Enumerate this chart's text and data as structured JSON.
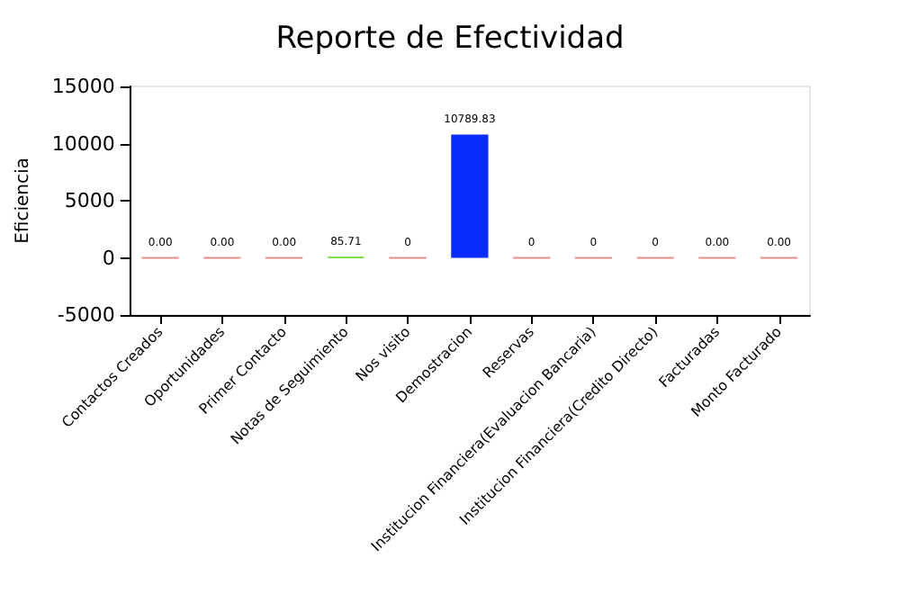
{
  "chart_data": {
    "type": "bar",
    "title": "Reporte de Efectividad",
    "ylabel": "Eficiencia",
    "categories": [
      "Contactos Creados",
      "Oportunidades",
      "Primer Contacto",
      "Notas de Seguimiento",
      "Nos visito",
      "Demostracion",
      "Reservas",
      "Institucion Financiera(Evaluacion Bancaria)",
      "Institucion Financiera(Credito Directo)",
      "Facturadas",
      "Monto Facturado"
    ],
    "values": [
      0,
      0,
      0,
      85.71,
      0,
      10789.83,
      0,
      0,
      0,
      0,
      0
    ],
    "value_labels": [
      "0.00",
      "0.00",
      "0.00",
      "85.71",
      "0",
      "10789.83",
      "0",
      "0",
      "0",
      "0.00",
      "0.00"
    ],
    "colors": [
      "#f28b8b",
      "#f28b8b",
      "#f28b8b",
      "#7ee050",
      "#f28b8b",
      "#0a2cff",
      "#f28b8b",
      "#f28b8b",
      "#f28b8b",
      "#f28b8b",
      "#f28b8b"
    ],
    "ylim": [
      -5000,
      15000
    ],
    "yticks": [
      -5000,
      0,
      5000,
      10000,
      15000
    ],
    "grid": false
  }
}
